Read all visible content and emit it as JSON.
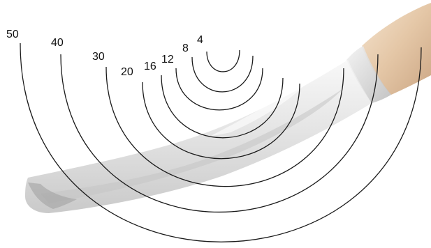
{
  "diagram": {
    "colors": {
      "curve": "#1a1a1a",
      "label": "#111111",
      "handle_light": "#f2dcc3",
      "handle_dark": "#c9a27e",
      "blade_light": "#f1f1f1",
      "blade_mid": "#d3d3d3",
      "blade_dark": "#a9a9a9"
    },
    "sweeps": [
      {
        "label": "4",
        "name": "sweep-4"
      },
      {
        "label": "8",
        "name": "sweep-8"
      },
      {
        "label": "12",
        "name": "sweep-12"
      },
      {
        "label": "16",
        "name": "sweep-16"
      },
      {
        "label": "20",
        "name": "sweep-20"
      },
      {
        "label": "30",
        "name": "sweep-30"
      },
      {
        "label": "40",
        "name": "sweep-40"
      },
      {
        "label": "50",
        "name": "sweep-50"
      }
    ]
  }
}
